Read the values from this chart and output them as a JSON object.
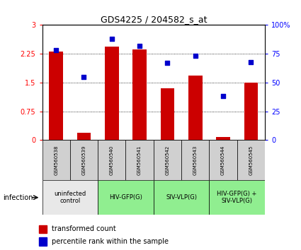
{
  "title": "GDS4225 / 204582_s_at",
  "samples": [
    "GSM560538",
    "GSM560539",
    "GSM560540",
    "GSM560541",
    "GSM560542",
    "GSM560543",
    "GSM560544",
    "GSM560545"
  ],
  "transformed_counts": [
    2.3,
    0.18,
    2.43,
    2.37,
    1.35,
    1.68,
    0.07,
    1.5
  ],
  "percentile_ranks_pct": [
    78,
    55,
    88,
    82,
    67,
    73,
    38,
    68
  ],
  "ylim_left": [
    0,
    3
  ],
  "ylim_right": [
    0,
    100
  ],
  "yticks_left": [
    0,
    0.75,
    1.5,
    2.25,
    3
  ],
  "yticks_right": [
    0,
    25,
    50,
    75,
    100
  ],
  "ytick_labels_left": [
    "0",
    "0.75",
    "1.5",
    "2.25",
    "3"
  ],
  "ytick_labels_right": [
    "0",
    "25",
    "50",
    "75",
    "100%"
  ],
  "bar_color": "#cc0000",
  "dot_color": "#0000cc",
  "bar_width": 0.5,
  "dot_size": 18,
  "groups": [
    {
      "label": "uninfected\ncontrol",
      "start": 0,
      "end": 2,
      "color": "#e8e8e8"
    },
    {
      "label": "HIV-GFP(G)",
      "start": 2,
      "end": 4,
      "color": "#90ee90"
    },
    {
      "label": "SIV-VLP(G)",
      "start": 4,
      "end": 6,
      "color": "#90ee90"
    },
    {
      "label": "HIV-GFP(G) +\nSIV-VLP(G)",
      "start": 6,
      "end": 8,
      "color": "#90ee90"
    }
  ],
  "sample_bg_color": "#d0d0d0",
  "infection_label": "infection",
  "legend_red_label": "transformed count",
  "legend_blue_label": "percentile rank within the sample",
  "background_color": "#ffffff"
}
